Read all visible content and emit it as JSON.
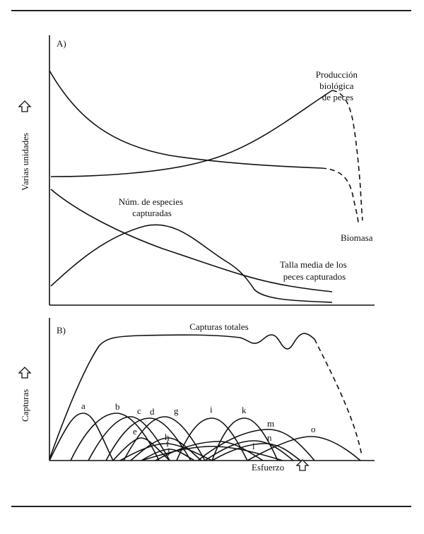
{
  "panel_a": {
    "label": "A)",
    "y_axis_label": "Varias unidades",
    "curves": {
      "produccion": [
        "Producción",
        "biológica",
        "de peces"
      ],
      "biomasa": "Biomasa",
      "especies": [
        "Núm. de especies",
        "capturadas"
      ],
      "talla": [
        "Talla media de los",
        "peces capturados"
      ]
    }
  },
  "panel_b": {
    "label": "B)",
    "y_axis_label": "Capturas",
    "x_axis_label": "Esfuerzo",
    "total_label": "Capturas totales",
    "species_labels": [
      "a",
      "b",
      "c",
      "d",
      "e",
      "f",
      "g",
      "h",
      "i",
      "j",
      "k",
      "l",
      "m",
      "n",
      "o"
    ]
  },
  "colors": {
    "line": "#111111",
    "background": "#ffffff"
  }
}
